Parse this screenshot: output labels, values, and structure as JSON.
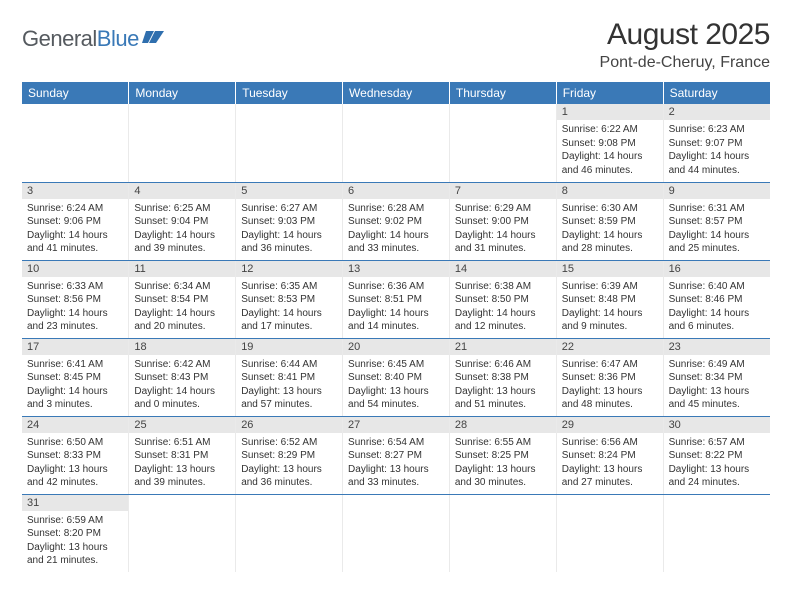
{
  "logo": {
    "text_general": "General",
    "text_blue": "Blue"
  },
  "title": "August 2025",
  "location": "Pont-de-Cheruy, France",
  "colors": {
    "header_bg": "#3a79b7",
    "header_fg": "#ffffff",
    "daynum_bg": "#e7e7e7",
    "row_border": "#3a79b7"
  },
  "day_headers": [
    "Sunday",
    "Monday",
    "Tuesday",
    "Wednesday",
    "Thursday",
    "Friday",
    "Saturday"
  ],
  "weeks": [
    [
      {
        "day": "",
        "lines": [
          "",
          "",
          "",
          ""
        ]
      },
      {
        "day": "",
        "lines": [
          "",
          "",
          "",
          ""
        ]
      },
      {
        "day": "",
        "lines": [
          "",
          "",
          "",
          ""
        ]
      },
      {
        "day": "",
        "lines": [
          "",
          "",
          "",
          ""
        ]
      },
      {
        "day": "",
        "lines": [
          "",
          "",
          "",
          ""
        ]
      },
      {
        "day": "1",
        "lines": [
          "Sunrise: 6:22 AM",
          "Sunset: 9:08 PM",
          "Daylight: 14 hours",
          "and 46 minutes."
        ]
      },
      {
        "day": "2",
        "lines": [
          "Sunrise: 6:23 AM",
          "Sunset: 9:07 PM",
          "Daylight: 14 hours",
          "and 44 minutes."
        ]
      }
    ],
    [
      {
        "day": "3",
        "lines": [
          "Sunrise: 6:24 AM",
          "Sunset: 9:06 PM",
          "Daylight: 14 hours",
          "and 41 minutes."
        ]
      },
      {
        "day": "4",
        "lines": [
          "Sunrise: 6:25 AM",
          "Sunset: 9:04 PM",
          "Daylight: 14 hours",
          "and 39 minutes."
        ]
      },
      {
        "day": "5",
        "lines": [
          "Sunrise: 6:27 AM",
          "Sunset: 9:03 PM",
          "Daylight: 14 hours",
          "and 36 minutes."
        ]
      },
      {
        "day": "6",
        "lines": [
          "Sunrise: 6:28 AM",
          "Sunset: 9:02 PM",
          "Daylight: 14 hours",
          "and 33 minutes."
        ]
      },
      {
        "day": "7",
        "lines": [
          "Sunrise: 6:29 AM",
          "Sunset: 9:00 PM",
          "Daylight: 14 hours",
          "and 31 minutes."
        ]
      },
      {
        "day": "8",
        "lines": [
          "Sunrise: 6:30 AM",
          "Sunset: 8:59 PM",
          "Daylight: 14 hours",
          "and 28 minutes."
        ]
      },
      {
        "day": "9",
        "lines": [
          "Sunrise: 6:31 AM",
          "Sunset: 8:57 PM",
          "Daylight: 14 hours",
          "and 25 minutes."
        ]
      }
    ],
    [
      {
        "day": "10",
        "lines": [
          "Sunrise: 6:33 AM",
          "Sunset: 8:56 PM",
          "Daylight: 14 hours",
          "and 23 minutes."
        ]
      },
      {
        "day": "11",
        "lines": [
          "Sunrise: 6:34 AM",
          "Sunset: 8:54 PM",
          "Daylight: 14 hours",
          "and 20 minutes."
        ]
      },
      {
        "day": "12",
        "lines": [
          "Sunrise: 6:35 AM",
          "Sunset: 8:53 PM",
          "Daylight: 14 hours",
          "and 17 minutes."
        ]
      },
      {
        "day": "13",
        "lines": [
          "Sunrise: 6:36 AM",
          "Sunset: 8:51 PM",
          "Daylight: 14 hours",
          "and 14 minutes."
        ]
      },
      {
        "day": "14",
        "lines": [
          "Sunrise: 6:38 AM",
          "Sunset: 8:50 PM",
          "Daylight: 14 hours",
          "and 12 minutes."
        ]
      },
      {
        "day": "15",
        "lines": [
          "Sunrise: 6:39 AM",
          "Sunset: 8:48 PM",
          "Daylight: 14 hours",
          "and 9 minutes."
        ]
      },
      {
        "day": "16",
        "lines": [
          "Sunrise: 6:40 AM",
          "Sunset: 8:46 PM",
          "Daylight: 14 hours",
          "and 6 minutes."
        ]
      }
    ],
    [
      {
        "day": "17",
        "lines": [
          "Sunrise: 6:41 AM",
          "Sunset: 8:45 PM",
          "Daylight: 14 hours",
          "and 3 minutes."
        ]
      },
      {
        "day": "18",
        "lines": [
          "Sunrise: 6:42 AM",
          "Sunset: 8:43 PM",
          "Daylight: 14 hours",
          "and 0 minutes."
        ]
      },
      {
        "day": "19",
        "lines": [
          "Sunrise: 6:44 AM",
          "Sunset: 8:41 PM",
          "Daylight: 13 hours",
          "and 57 minutes."
        ]
      },
      {
        "day": "20",
        "lines": [
          "Sunrise: 6:45 AM",
          "Sunset: 8:40 PM",
          "Daylight: 13 hours",
          "and 54 minutes."
        ]
      },
      {
        "day": "21",
        "lines": [
          "Sunrise: 6:46 AM",
          "Sunset: 8:38 PM",
          "Daylight: 13 hours",
          "and 51 minutes."
        ]
      },
      {
        "day": "22",
        "lines": [
          "Sunrise: 6:47 AM",
          "Sunset: 8:36 PM",
          "Daylight: 13 hours",
          "and 48 minutes."
        ]
      },
      {
        "day": "23",
        "lines": [
          "Sunrise: 6:49 AM",
          "Sunset: 8:34 PM",
          "Daylight: 13 hours",
          "and 45 minutes."
        ]
      }
    ],
    [
      {
        "day": "24",
        "lines": [
          "Sunrise: 6:50 AM",
          "Sunset: 8:33 PM",
          "Daylight: 13 hours",
          "and 42 minutes."
        ]
      },
      {
        "day": "25",
        "lines": [
          "Sunrise: 6:51 AM",
          "Sunset: 8:31 PM",
          "Daylight: 13 hours",
          "and 39 minutes."
        ]
      },
      {
        "day": "26",
        "lines": [
          "Sunrise: 6:52 AM",
          "Sunset: 8:29 PM",
          "Daylight: 13 hours",
          "and 36 minutes."
        ]
      },
      {
        "day": "27",
        "lines": [
          "Sunrise: 6:54 AM",
          "Sunset: 8:27 PM",
          "Daylight: 13 hours",
          "and 33 minutes."
        ]
      },
      {
        "day": "28",
        "lines": [
          "Sunrise: 6:55 AM",
          "Sunset: 8:25 PM",
          "Daylight: 13 hours",
          "and 30 minutes."
        ]
      },
      {
        "day": "29",
        "lines": [
          "Sunrise: 6:56 AM",
          "Sunset: 8:24 PM",
          "Daylight: 13 hours",
          "and 27 minutes."
        ]
      },
      {
        "day": "30",
        "lines": [
          "Sunrise: 6:57 AM",
          "Sunset: 8:22 PM",
          "Daylight: 13 hours",
          "and 24 minutes."
        ]
      }
    ],
    [
      {
        "day": "31",
        "lines": [
          "Sunrise: 6:59 AM",
          "Sunset: 8:20 PM",
          "Daylight: 13 hours",
          "and 21 minutes."
        ]
      },
      {
        "day": "",
        "lines": [
          "",
          "",
          "",
          ""
        ]
      },
      {
        "day": "",
        "lines": [
          "",
          "",
          "",
          ""
        ]
      },
      {
        "day": "",
        "lines": [
          "",
          "",
          "",
          ""
        ]
      },
      {
        "day": "",
        "lines": [
          "",
          "",
          "",
          ""
        ]
      },
      {
        "day": "",
        "lines": [
          "",
          "",
          "",
          ""
        ]
      },
      {
        "day": "",
        "lines": [
          "",
          "",
          "",
          ""
        ]
      }
    ]
  ]
}
